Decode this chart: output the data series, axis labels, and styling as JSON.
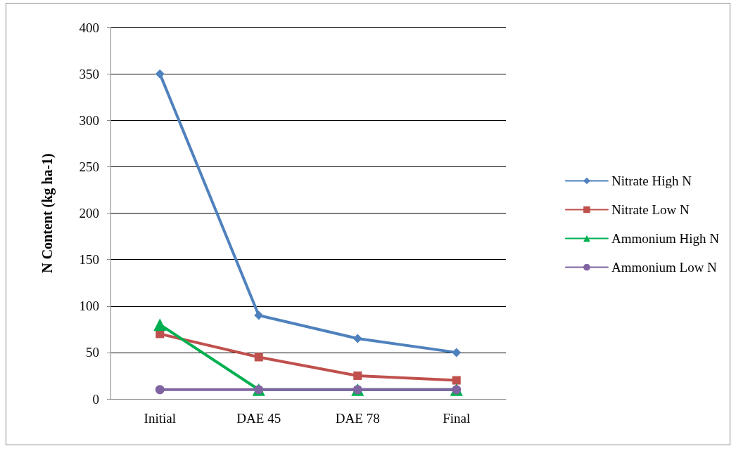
{
  "chart_data": {
    "type": "line",
    "ylabel": "N Content (kg ha-1)",
    "categories": [
      "Initial",
      "DAE 45",
      "DAE 78",
      "Final"
    ],
    "series": [
      {
        "name": "Nitrate High N",
        "color": "#4f81bd",
        "marker": "diamond",
        "values": [
          350,
          90,
          65,
          50
        ]
      },
      {
        "name": "Nitrate Low N",
        "color": "#c0504d",
        "marker": "square",
        "values": [
          70,
          45,
          25,
          20
        ]
      },
      {
        "name": "Ammonium High N",
        "color": "#00b050",
        "marker": "triangle",
        "values": [
          80,
          10,
          10,
          10
        ]
      },
      {
        "name": "Ammonium Low N",
        "color": "#8064a2",
        "marker": "circle",
        "values": [
          10,
          10,
          10,
          10
        ]
      }
    ],
    "ylim": [
      0,
      400
    ],
    "yticks": [
      0,
      50,
      100,
      150,
      200,
      250,
      300,
      350,
      400
    ],
    "grid": "y",
    "legend": "right",
    "line_style": "solid"
  }
}
